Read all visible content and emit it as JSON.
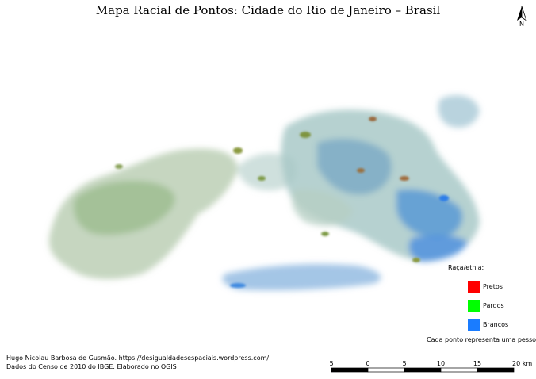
{
  "title": "Mapa Racial de Pontos: Cidade do Rio de Janeiro – Brasil",
  "north_label": "N",
  "legend": {
    "title": "Raça/etnia:",
    "items": [
      {
        "label": "Pretos",
        "color": "#ff0000"
      },
      {
        "label": "Pardos",
        "color": "#00ff00"
      },
      {
        "label": "Brancos",
        "color": "#1a7cff"
      }
    ],
    "note": "Cada ponto representa uma pessoa."
  },
  "credits": [
    "Hugo Nicolau Barbosa de Gusmão. https://desigualdadesespaciais.wordpress.com/",
    "Dados do Censo de 2010 do IBGE. Elaborado no QGIS"
  ],
  "scale_bar": {
    "labels": [
      "5",
      "0",
      "5",
      "10",
      "15",
      "20 km"
    ]
  }
}
